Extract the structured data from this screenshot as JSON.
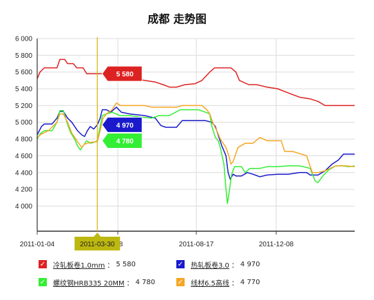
{
  "chart_data": {
    "type": "line",
    "title": "成都 走势图",
    "ylim": [
      3700,
      6000
    ],
    "yticks": [
      4000,
      4200,
      4400,
      4600,
      4800,
      5000,
      5200,
      5400,
      5600,
      5800,
      6000
    ],
    "ytick_labels": [
      "4 000",
      "4 200",
      "4 400",
      "4 600",
      "4 800",
      "5 000",
      "5 200",
      "5 400",
      "5 600",
      "5 800",
      "6 000"
    ],
    "xlim": [
      "2011-01-04",
      "2012-03-28"
    ],
    "xtick_labels": [
      {
        "date": "2011-01-04",
        "label": "2011-01-04"
      },
      {
        "date": "2011-04-28",
        "label": "-28"
      },
      {
        "date": "2011-08-17",
        "label": "2011-08-17"
      },
      {
        "date": "2011-12-08",
        "label": "2011-12-08"
      }
    ],
    "grid": true,
    "crosshair": {
      "date": "2011-03-30",
      "label": "2011-03-30",
      "labels": [
        {
          "series": 0,
          "text": "5 580"
        },
        {
          "series": 1,
          "text": "4 970"
        },
        {
          "series": 2,
          "text": "4 780"
        }
      ]
    },
    "series": [
      {
        "name": "冷轧板卷1.0mm",
        "color": "#dd2222",
        "current": "5 580",
        "points": [
          [
            "2011-01-04",
            5520
          ],
          [
            "2011-01-08",
            5600
          ],
          [
            "2011-01-14",
            5650
          ],
          [
            "2011-02-01",
            5650
          ],
          [
            "2011-02-05",
            5750
          ],
          [
            "2011-02-12",
            5750
          ],
          [
            "2011-02-16",
            5700
          ],
          [
            "2011-02-24",
            5700
          ],
          [
            "2011-03-01",
            5650
          ],
          [
            "2011-03-10",
            5650
          ],
          [
            "2011-03-15",
            5580
          ],
          [
            "2011-03-30",
            5580
          ],
          [
            "2011-04-08",
            5580
          ],
          [
            "2011-04-10",
            5620
          ],
          [
            "2011-04-16",
            5600
          ],
          [
            "2011-04-26",
            5580
          ],
          [
            "2011-05-06",
            5600
          ],
          [
            "2011-05-12",
            5550
          ],
          [
            "2011-05-22",
            5520
          ],
          [
            "2011-06-05",
            5500
          ],
          [
            "2011-06-20",
            5480
          ],
          [
            "2011-07-01",
            5450
          ],
          [
            "2011-07-10",
            5420
          ],
          [
            "2011-07-20",
            5420
          ],
          [
            "2011-08-01",
            5450
          ],
          [
            "2011-08-15",
            5460
          ],
          [
            "2011-08-25",
            5500
          ],
          [
            "2011-09-05",
            5600
          ],
          [
            "2011-09-12",
            5650
          ],
          [
            "2011-09-22",
            5650
          ],
          [
            "2011-10-05",
            5650
          ],
          [
            "2011-10-12",
            5600
          ],
          [
            "2011-10-17",
            5500
          ],
          [
            "2011-10-30",
            5450
          ],
          [
            "2011-11-10",
            5450
          ],
          [
            "2011-11-25",
            5420
          ],
          [
            "2011-12-10",
            5400
          ],
          [
            "2011-12-25",
            5350
          ],
          [
            "2012-01-10",
            5300
          ],
          [
            "2012-01-25",
            5280
          ],
          [
            "2012-02-05",
            5250
          ],
          [
            "2012-02-15",
            5200
          ],
          [
            "2012-03-28",
            5200
          ]
        ]
      },
      {
        "name": "热轧板卷3.0",
        "color": "#1a1acc",
        "current": "4 970",
        "points": [
          [
            "2011-01-04",
            4850
          ],
          [
            "2011-01-10",
            4950
          ],
          [
            "2011-01-14",
            4980
          ],
          [
            "2011-01-25",
            4980
          ],
          [
            "2011-02-01",
            5050
          ],
          [
            "2011-02-05",
            5130
          ],
          [
            "2011-02-10",
            5130
          ],
          [
            "2011-02-16",
            5050
          ],
          [
            "2011-02-22",
            5000
          ],
          [
            "2011-03-02",
            4900
          ],
          [
            "2011-03-08",
            4850
          ],
          [
            "2011-03-12",
            4830
          ],
          [
            "2011-03-16",
            4900
          ],
          [
            "2011-03-20",
            4950
          ],
          [
            "2011-03-25",
            4920
          ],
          [
            "2011-03-30",
            4970
          ],
          [
            "2011-04-03",
            5050
          ],
          [
            "2011-04-06",
            5150
          ],
          [
            "2011-04-12",
            5150
          ],
          [
            "2011-04-18",
            5120
          ],
          [
            "2011-04-26",
            5180
          ],
          [
            "2011-05-03",
            5120
          ],
          [
            "2011-05-15",
            5100
          ],
          [
            "2011-06-05",
            5080
          ],
          [
            "2011-06-20",
            5050
          ],
          [
            "2011-06-28",
            4960
          ],
          [
            "2011-07-05",
            4940
          ],
          [
            "2011-07-20",
            4940
          ],
          [
            "2011-07-28",
            5020
          ],
          [
            "2011-08-05",
            5020
          ],
          [
            "2011-08-20",
            5020
          ],
          [
            "2011-08-30",
            5020
          ],
          [
            "2011-09-08",
            5000
          ],
          [
            "2011-09-13",
            4950
          ],
          [
            "2011-09-18",
            4820
          ],
          [
            "2011-09-22",
            4720
          ],
          [
            "2011-09-28",
            4600
          ],
          [
            "2011-10-01",
            4400
          ],
          [
            "2011-10-04",
            4320
          ],
          [
            "2011-10-08",
            4380
          ],
          [
            "2011-10-12",
            4360
          ],
          [
            "2011-10-20",
            4360
          ],
          [
            "2011-10-28",
            4400
          ],
          [
            "2011-11-05",
            4380
          ],
          [
            "2011-11-15",
            4350
          ],
          [
            "2011-11-25",
            4370
          ],
          [
            "2011-12-10",
            4380
          ],
          [
            "2011-12-25",
            4380
          ],
          [
            "2012-01-10",
            4400
          ],
          [
            "2012-01-20",
            4400
          ],
          [
            "2012-01-25",
            4370
          ],
          [
            "2012-02-05",
            4370
          ],
          [
            "2012-02-15",
            4420
          ],
          [
            "2012-02-25",
            4500
          ],
          [
            "2012-03-05",
            4550
          ],
          [
            "2012-03-12",
            4620
          ],
          [
            "2012-03-28",
            4620
          ]
        ]
      },
      {
        "name": "螺纹钢HRB335 20MM",
        "color": "#33ee33",
        "current": "4 780",
        "points": [
          [
            "2011-01-04",
            4800
          ],
          [
            "2011-01-08",
            4860
          ],
          [
            "2011-01-14",
            4900
          ],
          [
            "2011-01-25",
            4900
          ],
          [
            "2011-02-01",
            5000
          ],
          [
            "2011-02-05",
            5140
          ],
          [
            "2011-02-10",
            5140
          ],
          [
            "2011-02-15",
            5000
          ],
          [
            "2011-02-20",
            4880
          ],
          [
            "2011-02-26",
            4800
          ],
          [
            "2011-03-02",
            4720
          ],
          [
            "2011-03-06",
            4670
          ],
          [
            "2011-03-10",
            4720
          ],
          [
            "2011-03-15",
            4780
          ],
          [
            "2011-03-20",
            4750
          ],
          [
            "2011-03-25",
            4760
          ],
          [
            "2011-03-30",
            4780
          ],
          [
            "2011-04-03",
            4950
          ],
          [
            "2011-04-06",
            5080
          ],
          [
            "2011-04-12",
            5100
          ],
          [
            "2011-04-20",
            5120
          ],
          [
            "2011-05-01",
            5080
          ],
          [
            "2011-05-15",
            5080
          ],
          [
            "2011-06-01",
            5060
          ],
          [
            "2011-06-15",
            5050
          ],
          [
            "2011-06-25",
            5080
          ],
          [
            "2011-07-10",
            5080
          ],
          [
            "2011-07-25",
            5150
          ],
          [
            "2011-08-10",
            5150
          ],
          [
            "2011-08-20",
            5150
          ],
          [
            "2011-08-30",
            5120
          ],
          [
            "2011-09-05",
            5100
          ],
          [
            "2011-09-08",
            4950
          ],
          [
            "2011-09-13",
            4820
          ],
          [
            "2011-09-17",
            4780
          ],
          [
            "2011-09-20",
            4700
          ],
          [
            "2011-09-25",
            4500
          ],
          [
            "2011-09-28",
            4200
          ],
          [
            "2011-09-30",
            4030
          ],
          [
            "2011-10-03",
            4200
          ],
          [
            "2011-10-06",
            4380
          ],
          [
            "2011-10-10",
            4470
          ],
          [
            "2011-10-20",
            4470
          ],
          [
            "2011-10-25",
            4400
          ],
          [
            "2011-11-01",
            4450
          ],
          [
            "2011-11-15",
            4450
          ],
          [
            "2011-11-25",
            4470
          ],
          [
            "2011-12-10",
            4470
          ],
          [
            "2011-12-25",
            4480
          ],
          [
            "2012-01-10",
            4480
          ],
          [
            "2012-01-25",
            4450
          ],
          [
            "2012-02-01",
            4300
          ],
          [
            "2012-02-05",
            4280
          ],
          [
            "2012-02-12",
            4360
          ],
          [
            "2012-02-20",
            4430
          ],
          [
            "2012-03-01",
            4480
          ],
          [
            "2012-03-10",
            4480
          ],
          [
            "2012-03-20",
            4470
          ],
          [
            "2012-03-28",
            4480
          ]
        ]
      },
      {
        "name": "线材6.5高线",
        "color": "#f5a623",
        "current": "4 770",
        "points": [
          [
            "2011-01-04",
            4820
          ],
          [
            "2011-01-10",
            4860
          ],
          [
            "2011-01-20",
            4900
          ],
          [
            "2011-02-01",
            5000
          ],
          [
            "2011-02-05",
            5100
          ],
          [
            "2011-02-10",
            5100
          ],
          [
            "2011-02-16",
            5000
          ],
          [
            "2011-02-22",
            4870
          ],
          [
            "2011-03-02",
            4770
          ],
          [
            "2011-03-08",
            4700
          ],
          [
            "2011-03-12",
            4740
          ],
          [
            "2011-03-20",
            4760
          ],
          [
            "2011-03-30",
            4770
          ],
          [
            "2011-04-03",
            4900
          ],
          [
            "2011-04-07",
            5050
          ],
          [
            "2011-04-12",
            5100
          ],
          [
            "2011-04-20",
            5150
          ],
          [
            "2011-04-26",
            5230
          ],
          [
            "2011-05-02",
            5200
          ],
          [
            "2011-05-10",
            5200
          ],
          [
            "2011-05-25",
            5200
          ],
          [
            "2011-06-05",
            5200
          ],
          [
            "2011-06-15",
            5180
          ],
          [
            "2011-06-25",
            5180
          ],
          [
            "2011-07-05",
            5180
          ],
          [
            "2011-07-20",
            5180
          ],
          [
            "2011-07-28",
            5200
          ],
          [
            "2011-08-10",
            5200
          ],
          [
            "2011-08-25",
            5200
          ],
          [
            "2011-09-01",
            5150
          ],
          [
            "2011-09-05",
            5100
          ],
          [
            "2011-09-10",
            4980
          ],
          [
            "2011-09-15",
            4900
          ],
          [
            "2011-09-20",
            4800
          ],
          [
            "2011-09-28",
            4700
          ],
          [
            "2011-10-02",
            4600
          ],
          [
            "2011-10-05",
            4500
          ],
          [
            "2011-10-08",
            4530
          ],
          [
            "2011-10-15",
            4700
          ],
          [
            "2011-10-25",
            4750
          ],
          [
            "2011-11-05",
            4750
          ],
          [
            "2011-11-15",
            4820
          ],
          [
            "2011-11-25",
            4780
          ],
          [
            "2011-12-05",
            4780
          ],
          [
            "2011-12-15",
            4780
          ],
          [
            "2011-12-20",
            4650
          ],
          [
            "2012-01-01",
            4650
          ],
          [
            "2012-01-20",
            4600
          ],
          [
            "2012-01-28",
            4400
          ],
          [
            "2012-02-05",
            4400
          ],
          [
            "2012-02-15",
            4420
          ],
          [
            "2012-03-01",
            4480
          ],
          [
            "2012-03-15",
            4480
          ],
          [
            "2012-03-28",
            4470
          ]
        ]
      }
    ]
  }
}
